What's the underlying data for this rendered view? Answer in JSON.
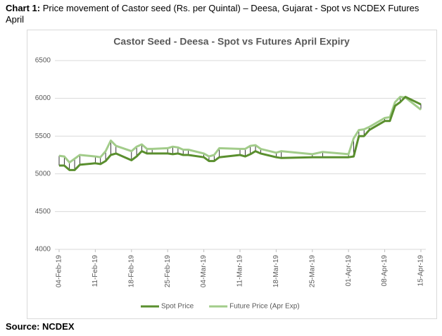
{
  "caption": {
    "label": "Chart 1:",
    "text": "Price movement of Castor seed (Rs. per Quintal) – Deesa, Gujarat - Spot vs NCDEX Futures April"
  },
  "source": "Source: NCDEX",
  "chart_data": {
    "type": "line",
    "title": "Castor Seed - Deesa - Spot vs Futures April Expiry",
    "x": [
      "2019-02-04",
      "2019-02-05",
      "2019-02-06",
      "2019-02-07",
      "2019-02-08",
      "2019-02-11",
      "2019-02-12",
      "2019-02-13",
      "2019-02-14",
      "2019-02-15",
      "2019-02-18",
      "2019-02-19",
      "2019-02-20",
      "2019-02-21",
      "2019-02-22",
      "2019-02-25",
      "2019-02-26",
      "2019-02-27",
      "2019-02-28",
      "2019-03-01",
      "2019-03-04",
      "2019-03-05",
      "2019-03-06",
      "2019-03-07",
      "2019-03-11",
      "2019-03-12",
      "2019-03-13",
      "2019-03-14",
      "2019-03-15",
      "2019-03-18",
      "2019-03-19",
      "2019-03-25",
      "2019-03-27",
      "2019-04-01",
      "2019-04-02",
      "2019-04-03",
      "2019-04-04",
      "2019-04-05",
      "2019-04-08",
      "2019-04-09",
      "2019-04-10",
      "2019-04-11",
      "2019-04-12",
      "2019-04-15"
    ],
    "series": [
      {
        "name": "Spot Price",
        "color": "#5a8f2e",
        "values": [
          5110,
          5110,
          5050,
          5050,
          5120,
          5140,
          5130,
          5170,
          5250,
          5270,
          5180,
          5230,
          5300,
          5270,
          5270,
          5270,
          5260,
          5270,
          5250,
          5250,
          5220,
          5170,
          5170,
          5220,
          5250,
          5230,
          5260,
          5300,
          5270,
          5220,
          5210,
          5220,
          5220,
          5220,
          5230,
          5500,
          5500,
          5580,
          5700,
          5700,
          5900,
          5950,
          6020,
          5920
        ]
      },
      {
        "name": "Future Price (Apr Exp)",
        "color": "#a2cc8a",
        "values": [
          5240,
          5230,
          5150,
          5200,
          5250,
          5230,
          5220,
          5300,
          5440,
          5370,
          5300,
          5360,
          5390,
          5330,
          5330,
          5340,
          5360,
          5350,
          5320,
          5320,
          5270,
          5230,
          5250,
          5340,
          5330,
          5330,
          5370,
          5380,
          5330,
          5280,
          5300,
          5260,
          5290,
          5260,
          5470,
          5580,
          5590,
          5620,
          5740,
          5750,
          5950,
          6020,
          6010,
          5850
        ]
      }
    ],
    "xlim": [
      "2019-02-04",
      "2019-04-15"
    ],
    "xticks": [
      {
        "value": "2019-02-04",
        "label": "04-Feb-19"
      },
      {
        "value": "2019-02-11",
        "label": "11-Feb-19"
      },
      {
        "value": "2019-02-18",
        "label": "18-Feb-19"
      },
      {
        "value": "2019-02-25",
        "label": "25-Feb-19"
      },
      {
        "value": "2019-03-04",
        "label": "04-Mar-19"
      },
      {
        "value": "2019-03-11",
        "label": "11-Mar-19"
      },
      {
        "value": "2019-03-18",
        "label": "18-Mar-19"
      },
      {
        "value": "2019-03-25",
        "label": "25-Mar-19"
      },
      {
        "value": "2019-04-01",
        "label": "01-Apr-19"
      },
      {
        "value": "2019-04-08",
        "label": "08-Apr-19"
      },
      {
        "value": "2019-04-15",
        "label": "15-Apr-19"
      }
    ],
    "ylim": [
      4000,
      6500
    ],
    "yticks": [
      4000,
      4500,
      5000,
      5500,
      6000,
      6500
    ],
    "grid": true,
    "legend": "bottom"
  }
}
